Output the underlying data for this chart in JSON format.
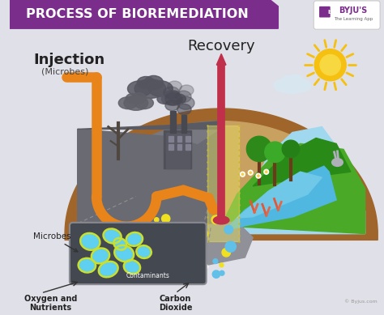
{
  "title": "PROCESS OF BIOREMEDIATION",
  "title_bg": "#7b2d8b",
  "title_color": "#ffffff",
  "bg_color": "#e0e0e8",
  "injection_label": "Injection",
  "injection_sub": "(Microbes)",
  "recovery_label": "Recovery",
  "microbes_label": "Microbes",
  "contaminants_label": "Contaminants",
  "oxygen_label": "Oxygen and\nNutrients",
  "co2_label": "Carbon\nDioxide",
  "byju_text": "BYJU'S",
  "byju_sub": "The Learning App",
  "copyright": "© Byjus.com",
  "pipe_color": "#e8841a",
  "recovery_pipe_color": "#c0304a",
  "brown_outer": "#a0652a",
  "brown_inner": "#c8903a",
  "gray_polluted": "#6a6a72",
  "gray_underground": "#7a7a82",
  "green_nature": "#4aaa28",
  "green_dark": "#2a8a18",
  "water_blue": "#50b8e0",
  "water_blue2": "#3090c0",
  "sky_blue": "#a0d8f0",
  "sun_color": "#f5c010",
  "sun_ray": "#f5c010",
  "microbe_box_bg": "#444850",
  "microbe_cell_color": "#60d0f0",
  "microbe_outline": "#c8e030",
  "highlight_yellow": "#e8e060",
  "smoke_color": "#505058",
  "cloud_color": "#606068",
  "factory_color": "#585860",
  "tree_trunk": "#6b3a1a",
  "tree_green1": "#2d8a1a",
  "tree_green2": "#3aaa28",
  "soil_bottom": "#8a5020",
  "soil_stripe": "#704010"
}
